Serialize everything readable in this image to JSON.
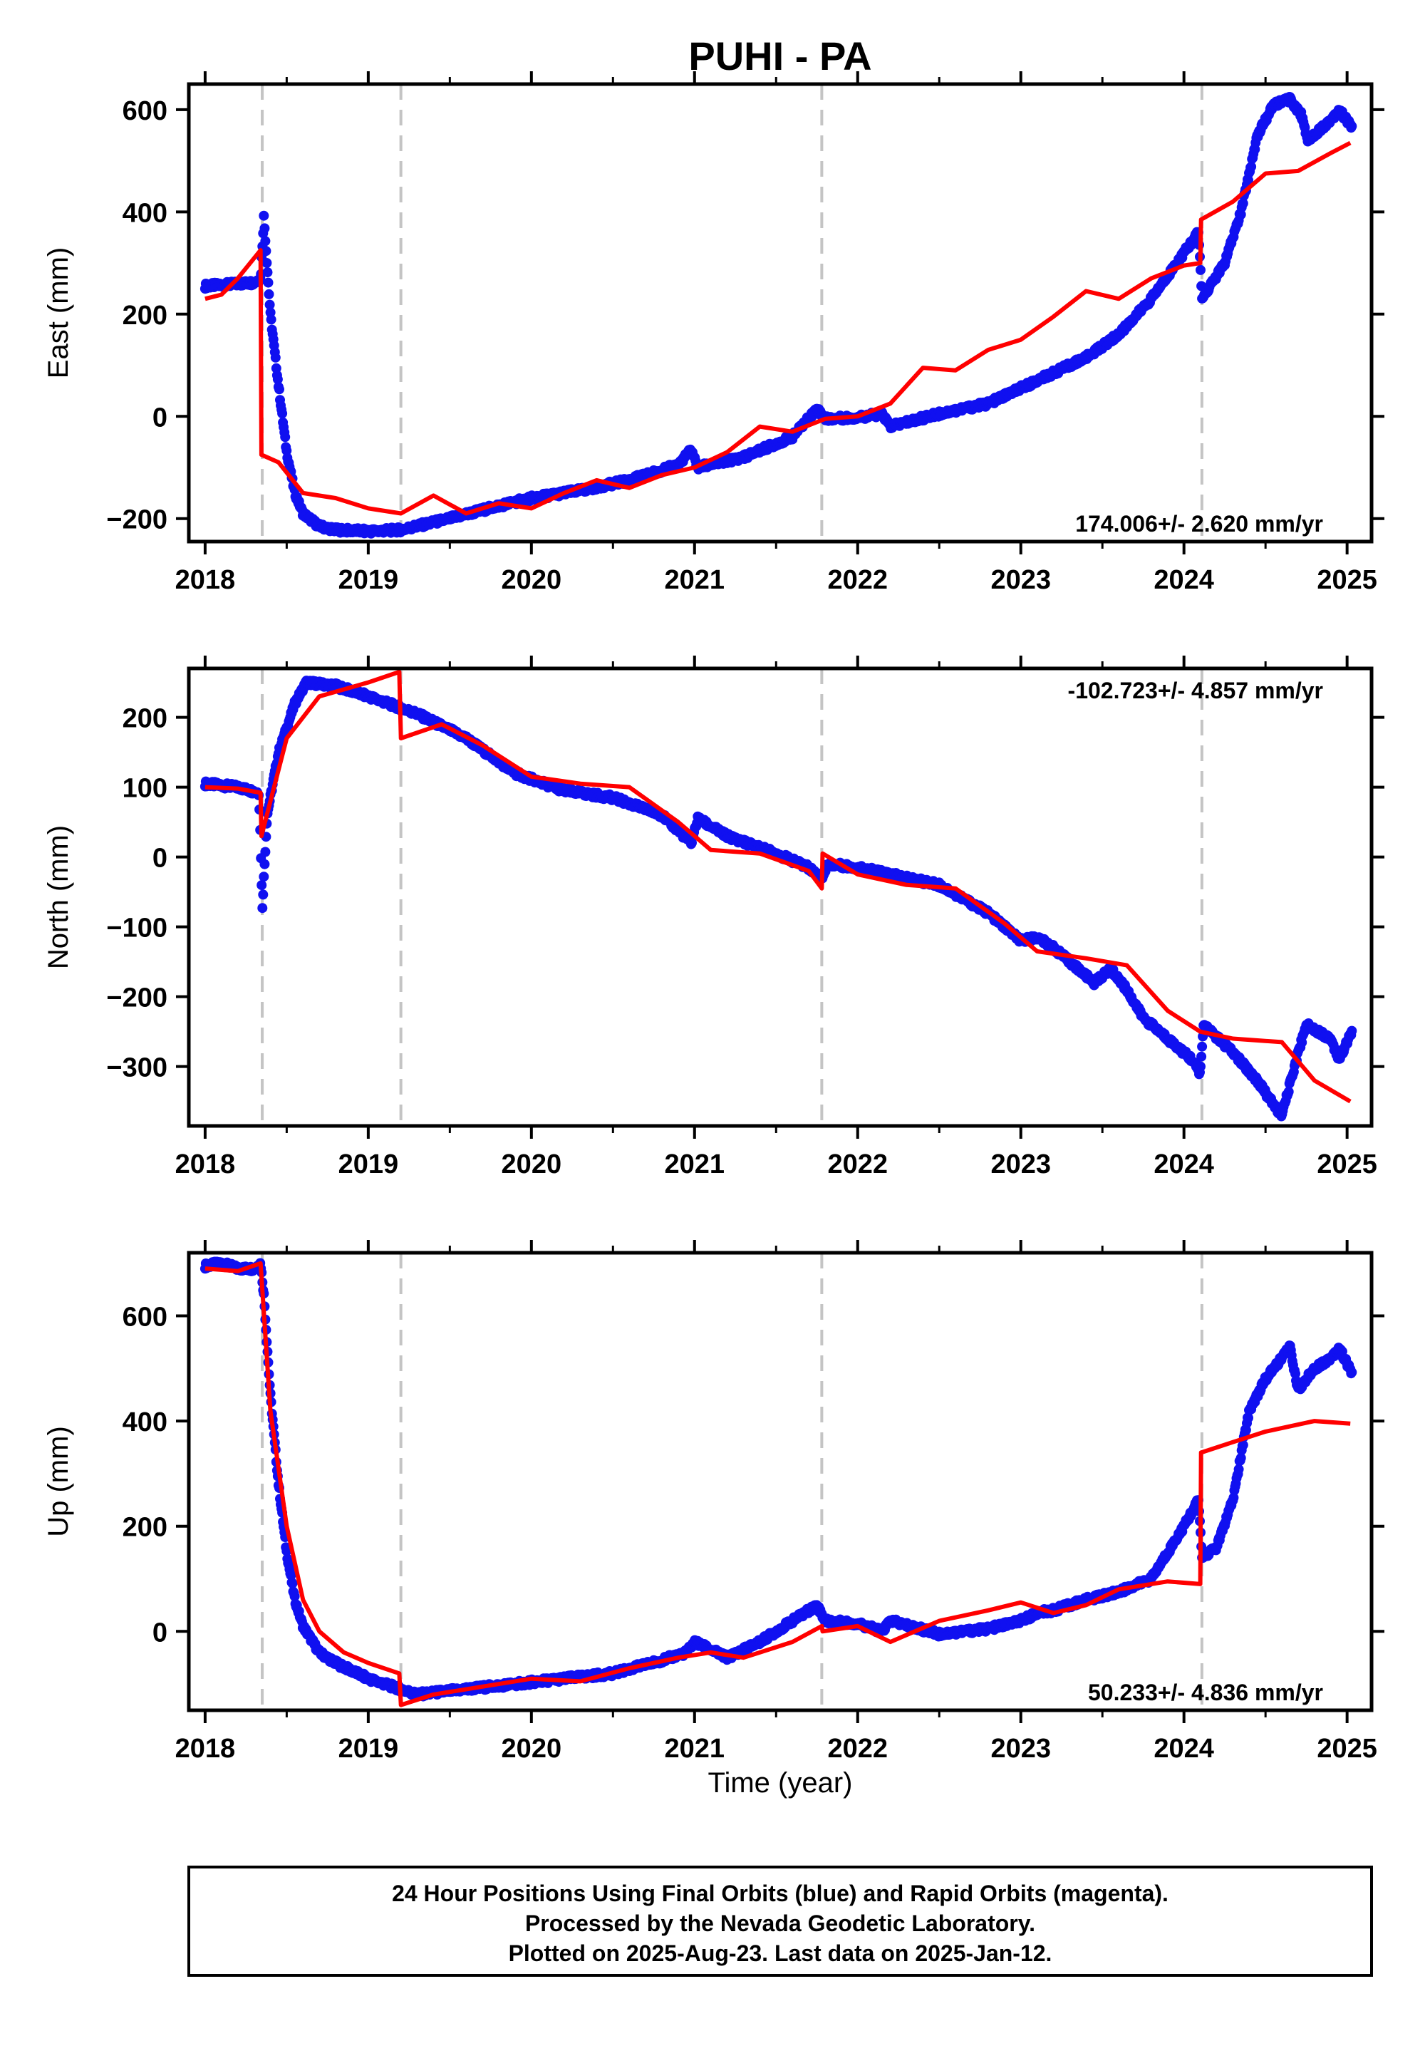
{
  "title": "PUHI - PA",
  "xlabel": "Time (year)",
  "colors": {
    "observed": "#1010f0",
    "model": "#ff0000",
    "event_line": "#c4c4c4"
  },
  "footer": {
    "lines": [
      "24 Hour Positions Using Final Orbits (blue) and Rapid Orbits (magenta).",
      "Processed by the Nevada Geodetic Laboratory.",
      "Plotted on 2025-Aug-23. Last data on 2025-Jan-12."
    ]
  },
  "chart_data": [
    {
      "type": "scatter",
      "ylabel": "East (mm)",
      "rate_label": "174.006+/- 2.620 mm/yr",
      "rate_position": "bottom-right",
      "xlim": [
        2017.9,
        2025.15
      ],
      "ylim": [
        -245,
        650
      ],
      "xticks": [
        2018,
        2019,
        2020,
        2021,
        2022,
        2023,
        2024,
        2025
      ],
      "xtick_labels": [
        "2018",
        "2019",
        "2020",
        "2021",
        "2022",
        "2023",
        "2024",
        "2025"
      ],
      "yticks": [
        -200,
        0,
        200,
        400,
        600
      ],
      "ytick_labels": [
        "−200",
        "0",
        "200",
        "400",
        "600"
      ],
      "event_lines": [
        2018.35,
        2019.2,
        2021.78,
        2024.11
      ],
      "series": [
        {
          "role": "observed",
          "x": [
            2018.0,
            2018.15,
            2018.3,
            2018.34,
            2018.36,
            2018.4,
            2018.45,
            2018.5,
            2018.55,
            2018.6,
            2018.7,
            2018.8,
            2019.0,
            2019.2,
            2019.5,
            2019.8,
            2020.0,
            2020.3,
            2020.6,
            2020.9,
            2020.98,
            2021.02,
            2021.3,
            2021.6,
            2021.75,
            2021.8,
            2022.0,
            2022.15,
            2022.2,
            2022.5,
            2022.8,
            2023.0,
            2023.2,
            2023.4,
            2023.6,
            2023.8,
            2024.0,
            2024.09,
            2024.11,
            2024.15,
            2024.25,
            2024.35,
            2024.45,
            2024.55,
            2024.65,
            2024.72,
            2024.76,
            2024.9,
            2024.95,
            2025.03
          ],
          "y": [
            255,
            258,
            262,
            270,
            390,
            200,
            60,
            -70,
            -150,
            -190,
            -215,
            -222,
            -225,
            -222,
            -200,
            -175,
            -160,
            -145,
            -125,
            -95,
            -65,
            -100,
            -80,
            -40,
            15,
            -5,
            -2,
            5,
            -20,
            5,
            25,
            55,
            85,
            115,
            160,
            230,
            320,
            360,
            230,
            250,
            300,
            400,
            550,
            610,
            620,
            590,
            540,
            580,
            600,
            565
          ]
        },
        {
          "role": "model",
          "x": [
            2018.0,
            2018.1,
            2018.2,
            2018.34,
            2018.345,
            2018.45,
            2018.6,
            2018.8,
            2019.0,
            2019.2,
            2019.4,
            2019.6,
            2019.8,
            2020.0,
            2020.2,
            2020.4,
            2020.6,
            2020.8,
            2021.0,
            2021.2,
            2021.4,
            2021.6,
            2021.8,
            2022.0,
            2022.2,
            2022.4,
            2022.6,
            2022.8,
            2023.0,
            2023.2,
            2023.4,
            2023.6,
            2023.8,
            2024.0,
            2024.1,
            2024.105,
            2024.3,
            2024.5,
            2024.7,
            2024.9,
            2025.02
          ],
          "y": [
            230,
            238,
            270,
            325,
            -75,
            -90,
            -150,
            -160,
            -180,
            -190,
            -155,
            -190,
            -170,
            -180,
            -150,
            -125,
            -140,
            -115,
            -100,
            -70,
            -20,
            -30,
            -5,
            0,
            25,
            95,
            90,
            130,
            150,
            195,
            245,
            230,
            270,
            295,
            300,
            385,
            420,
            475,
            480,
            515,
            535
          ]
        }
      ]
    },
    {
      "type": "scatter",
      "ylabel": "North (mm)",
      "rate_label": "-102.723+/- 4.857 mm/yr",
      "rate_position": "top-right",
      "xlim": [
        2017.9,
        2025.15
      ],
      "ylim": [
        -385,
        270
      ],
      "xticks": [
        2018,
        2019,
        2020,
        2021,
        2022,
        2023,
        2024,
        2025
      ],
      "xtick_labels": [
        "2018",
        "2019",
        "2020",
        "2021",
        "2022",
        "2023",
        "2024",
        "2025"
      ],
      "yticks": [
        -300,
        -200,
        -100,
        0,
        100,
        200
      ],
      "ytick_labels": [
        "−300",
        "−200",
        "−100",
        "0",
        "100",
        "200"
      ],
      "event_lines": [
        2018.35,
        2019.2,
        2021.78,
        2024.11
      ],
      "series": [
        {
          "role": "observed",
          "x": [
            2018.0,
            2018.2,
            2018.33,
            2018.34,
            2018.35,
            2018.38,
            2018.45,
            2018.55,
            2018.62,
            2018.8,
            2019.0,
            2019.3,
            2019.6,
            2019.9,
            2020.2,
            2020.5,
            2020.8,
            2020.98,
            2021.02,
            2021.2,
            2021.5,
            2021.7,
            2021.78,
            2021.82,
            2022.0,
            2022.3,
            2022.5,
            2022.8,
            2023.0,
            2023.1,
            2023.2,
            2023.35,
            2023.45,
            2023.55,
            2023.65,
            2023.75,
            2023.9,
            2024.05,
            2024.1,
            2024.12,
            2024.3,
            2024.45,
            2024.55,
            2024.6,
            2024.7,
            2024.75,
            2024.9,
            2024.95,
            2025.03
          ],
          "y": [
            105,
            100,
            92,
            20,
            -75,
            60,
            150,
            220,
            250,
            245,
            230,
            205,
            170,
            120,
            95,
            85,
            60,
            20,
            55,
            30,
            5,
            -15,
            -30,
            -10,
            -15,
            -30,
            -40,
            -80,
            -120,
            -115,
            -130,
            -160,
            -180,
            -160,
            -190,
            -230,
            -260,
            -290,
            -310,
            -240,
            -280,
            -320,
            -355,
            -370,
            -280,
            -240,
            -260,
            -290,
            -250
          ]
        },
        {
          "role": "model",
          "x": [
            2018.0,
            2018.2,
            2018.34,
            2018.345,
            2018.5,
            2018.7,
            2019.0,
            2019.19,
            2019.2,
            2019.45,
            2019.7,
            2020.0,
            2020.3,
            2020.6,
            2020.9,
            2021.1,
            2021.4,
            2021.7,
            2021.78,
            2021.785,
            2022.0,
            2022.3,
            2022.6,
            2022.9,
            2023.1,
            2023.4,
            2023.65,
            2023.9,
            2024.1,
            2024.3,
            2024.6,
            2024.8,
            2025.02
          ],
          "y": [
            100,
            98,
            92,
            30,
            170,
            230,
            250,
            265,
            170,
            190,
            160,
            115,
            105,
            100,
            50,
            10,
            5,
            -20,
            -45,
            5,
            -25,
            -40,
            -45,
            -95,
            -135,
            -145,
            -155,
            -220,
            -250,
            -260,
            -265,
            -320,
            -350
          ]
        }
      ]
    },
    {
      "type": "scatter",
      "ylabel": "Up (mm)",
      "rate_label": "50.233+/- 4.836 mm/yr",
      "rate_position": "bottom-right",
      "xlim": [
        2017.9,
        2025.15
      ],
      "ylim": [
        -150,
        720
      ],
      "xticks": [
        2018,
        2019,
        2020,
        2021,
        2022,
        2023,
        2024,
        2025
      ],
      "xtick_labels": [
        "2018",
        "2019",
        "2020",
        "2021",
        "2022",
        "2023",
        "2024",
        "2025"
      ],
      "yticks": [
        0,
        200,
        400,
        600
      ],
      "ytick_labels": [
        "0",
        "200",
        "400",
        "600"
      ],
      "event_lines": [
        2018.35,
        2019.2,
        2021.78,
        2024.11
      ],
      "series": [
        {
          "role": "observed",
          "x": [
            2018.0,
            2018.1,
            2018.2,
            2018.3,
            2018.34,
            2018.36,
            2018.4,
            2018.45,
            2018.5,
            2018.55,
            2018.6,
            2018.7,
            2018.8,
            2019.0,
            2019.2,
            2019.3,
            2019.6,
            2019.9,
            2020.2,
            2020.5,
            2020.8,
            2020.95,
            2021.0,
            2021.2,
            2021.4,
            2021.6,
            2021.75,
            2021.8,
            2022.0,
            2022.15,
            2022.2,
            2022.5,
            2022.8,
            2023.0,
            2023.1,
            2023.2,
            2023.4,
            2023.6,
            2023.8,
            2024.0,
            2024.09,
            2024.11,
            2024.2,
            2024.3,
            2024.4,
            2024.5,
            2024.6,
            2024.65,
            2024.7,
            2024.8,
            2024.9,
            2024.95,
            2025.03
          ],
          "y": [
            695,
            700,
            690,
            690,
            700,
            640,
            450,
            280,
            150,
            60,
            10,
            -40,
            -60,
            -90,
            -110,
            -120,
            -110,
            -100,
            -90,
            -80,
            -55,
            -40,
            -20,
            -50,
            -20,
            20,
            50,
            20,
            15,
            0,
            20,
            -5,
            5,
            20,
            35,
            40,
            60,
            75,
            100,
            200,
            250,
            140,
            160,
            250,
            420,
            480,
            520,
            540,
            460,
            500,
            520,
            540,
            490
          ]
        },
        {
          "role": "model",
          "x": [
            2018.0,
            2018.2,
            2018.34,
            2018.4,
            2018.5,
            2018.6,
            2018.7,
            2018.85,
            2019.0,
            2019.19,
            2019.2,
            2019.4,
            2019.7,
            2020.0,
            2020.3,
            2020.6,
            2020.9,
            2021.1,
            2021.3,
            2021.6,
            2021.78,
            2021.785,
            2022.0,
            2022.2,
            2022.5,
            2022.8,
            2023.0,
            2023.2,
            2023.4,
            2023.6,
            2023.9,
            2024.1,
            2024.105,
            2024.3,
            2024.5,
            2024.8,
            2025.02
          ],
          "y": [
            690,
            685,
            700,
            420,
            200,
            60,
            0,
            -40,
            -60,
            -80,
            -140,
            -120,
            -105,
            -90,
            -95,
            -70,
            -50,
            -40,
            -50,
            -20,
            10,
            0,
            10,
            -20,
            20,
            40,
            55,
            35,
            50,
            80,
            95,
            90,
            340,
            360,
            380,
            400,
            395
          ]
        }
      ]
    }
  ]
}
